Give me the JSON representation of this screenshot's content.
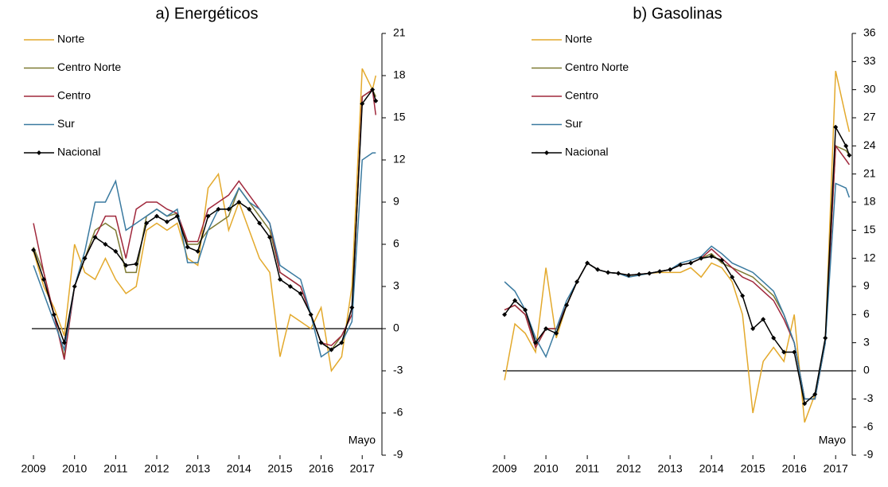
{
  "chart_data": [
    {
      "type": "line",
      "title": "a) Energéticos",
      "annotation": "Mayo",
      "x": [
        2009,
        2009.25,
        2009.5,
        2009.75,
        2010,
        2010.25,
        2010.5,
        2010.75,
        2011,
        2011.25,
        2011.5,
        2011.75,
        2012,
        2012.25,
        2012.5,
        2012.75,
        2013,
        2013.25,
        2013.5,
        2013.75,
        2014,
        2014.25,
        2014.5,
        2014.75,
        2015,
        2015.25,
        2015.5,
        2015.75,
        2016,
        2016.25,
        2016.5,
        2016.75,
        2017,
        2017.25,
        2017.33
      ],
      "xlim": [
        2008.96,
        2017.48
      ],
      "xticks": [
        2009,
        2010,
        2011,
        2012,
        2013,
        2014,
        2015,
        2016,
        2017
      ],
      "ylim": [
        -9,
        21
      ],
      "yticks": [
        -9,
        -6,
        -3,
        0,
        3,
        6,
        9,
        12,
        15,
        18,
        21
      ],
      "series": [
        {
          "name": "Norte",
          "color": "#e3a92c",
          "values": [
            5.5,
            3.0,
            1.5,
            -0.5,
            6.0,
            4.0,
            3.5,
            5.0,
            3.5,
            2.5,
            3.0,
            7.0,
            7.5,
            7.0,
            7.5,
            5.0,
            4.5,
            10.0,
            11.0,
            7.0,
            9.0,
            7.0,
            5.0,
            4.0,
            -2.0,
            1.0,
            0.5,
            0.0,
            1.5,
            -3.0,
            -2.0,
            3.0,
            18.5,
            17.0,
            18.0
          ]
        },
        {
          "name": "Centro Norte",
          "color": "#7d7a32",
          "values": [
            5.8,
            4.0,
            1.0,
            -2.0,
            3.0,
            5.0,
            7.0,
            7.5,
            7.0,
            4.0,
            4.0,
            8.0,
            8.5,
            8.0,
            8.2,
            6.0,
            6.0,
            7.0,
            7.5,
            8.0,
            10.0,
            9.0,
            8.0,
            7.0,
            4.0,
            3.5,
            3.0,
            1.0,
            -1.0,
            -1.5,
            -0.5,
            1.0,
            16.5,
            17.0,
            16.5
          ]
        },
        {
          "name": "Centro",
          "color": "#a0283c",
          "values": [
            7.5,
            4.0,
            1.0,
            -2.2,
            3.0,
            5.0,
            6.5,
            8.0,
            8.0,
            5.0,
            8.5,
            9.0,
            9.0,
            8.5,
            8.2,
            6.2,
            6.2,
            8.5,
            9.0,
            9.5,
            10.5,
            9.5,
            8.5,
            7.5,
            4.0,
            3.5,
            3.0,
            1.0,
            -1.0,
            -1.2,
            -0.5,
            1.0,
            16.5,
            17.0,
            15.2
          ]
        },
        {
          "name": "Sur",
          "color": "#3a7aa0",
          "values": [
            4.5,
            2.5,
            0.5,
            -1.5,
            3.0,
            5.5,
            9.0,
            9.0,
            10.5,
            7.0,
            7.5,
            8.0,
            8.5,
            8.0,
            8.5,
            4.7,
            4.7,
            7.0,
            8.5,
            8.5,
            10.0,
            9.0,
            8.5,
            7.5,
            4.5,
            4.0,
            3.5,
            1.0,
            -2.0,
            -1.5,
            -1.0,
            0.5,
            12.0,
            12.5,
            12.5
          ]
        },
        {
          "name": "Nacional",
          "color": "#000000",
          "values": [
            5.6,
            3.5,
            1.0,
            -1.0,
            3.0,
            5.0,
            6.5,
            6.0,
            5.5,
            4.5,
            4.6,
            7.5,
            8.0,
            7.6,
            8.0,
            5.8,
            5.5,
            8.0,
            8.5,
            8.5,
            9.0,
            8.5,
            7.5,
            6.5,
            3.5,
            3.0,
            2.5,
            1.0,
            -1.0,
            -1.5,
            -1.0,
            1.5,
            16.0,
            17.0,
            16.2
          ]
        }
      ]
    },
    {
      "type": "line",
      "title": "b) Gasolinas",
      "annotation": "Mayo",
      "x": [
        2009,
        2009.25,
        2009.5,
        2009.75,
        2010,
        2010.25,
        2010.5,
        2010.75,
        2011,
        2011.25,
        2011.5,
        2011.75,
        2012,
        2012.25,
        2012.5,
        2012.75,
        2013,
        2013.25,
        2013.5,
        2013.75,
        2014,
        2014.25,
        2014.5,
        2014.75,
        2015,
        2015.25,
        2015.5,
        2015.75,
        2016,
        2016.25,
        2016.5,
        2016.75,
        2017,
        2017.25,
        2017.33
      ],
      "xlim": [
        2008.96,
        2017.4
      ],
      "xticks": [
        2009,
        2010,
        2011,
        2012,
        2013,
        2014,
        2015,
        2016,
        2017
      ],
      "ylim": [
        -9,
        36
      ],
      "yticks": [
        -9,
        -6,
        -3,
        0,
        3,
        6,
        9,
        12,
        15,
        18,
        21,
        24,
        27,
        30,
        33,
        36
      ],
      "series": [
        {
          "name": "Norte",
          "color": "#e3a92c",
          "values": [
            -1.0,
            5.0,
            4.0,
            2.0,
            11.0,
            3.5,
            7.0,
            9.5,
            11.5,
            10.8,
            10.5,
            10.4,
            10.2,
            10.2,
            10.4,
            10.5,
            10.5,
            10.5,
            11.0,
            10.0,
            11.5,
            11.0,
            9.5,
            6.0,
            -4.5,
            1.0,
            2.5,
            1.0,
            6.0,
            -5.5,
            -2.5,
            3.0,
            32.0,
            27.0,
            25.5
          ]
        },
        {
          "name": "Centro Norte",
          "color": "#7d7a32",
          "values": [
            6.5,
            7.0,
            6.0,
            2.5,
            4.5,
            4.5,
            7.0,
            9.5,
            11.5,
            10.8,
            10.5,
            10.4,
            10.2,
            10.3,
            10.4,
            10.6,
            10.8,
            11.3,
            11.5,
            12.0,
            12.5,
            11.5,
            11.0,
            10.5,
            10.0,
            9.0,
            8.0,
            6.0,
            3.0,
            -3.0,
            -3.0,
            3.0,
            24.0,
            23.5,
            23.0
          ]
        },
        {
          "name": "Centro",
          "color": "#a0283c",
          "values": [
            6.5,
            7.0,
            6.0,
            2.5,
            4.5,
            4.5,
            7.0,
            9.5,
            11.5,
            10.8,
            10.5,
            10.4,
            10.2,
            10.3,
            10.4,
            10.6,
            10.8,
            11.3,
            11.5,
            12.0,
            13.0,
            12.0,
            11.0,
            10.0,
            9.5,
            8.5,
            7.5,
            5.5,
            3.0,
            -3.0,
            -3.0,
            3.0,
            24.0,
            22.5,
            22.0
          ]
        },
        {
          "name": "Sur",
          "color": "#3a7aa0",
          "values": [
            9.5,
            8.5,
            6.5,
            3.5,
            1.5,
            4.5,
            7.5,
            9.5,
            11.5,
            10.8,
            10.5,
            10.4,
            10.0,
            10.2,
            10.4,
            10.6,
            10.8,
            11.5,
            11.8,
            12.2,
            13.3,
            12.5,
            11.5,
            11.0,
            10.5,
            9.5,
            8.5,
            6.0,
            3.0,
            -3.0,
            -3.0,
            3.0,
            20.0,
            19.5,
            18.5
          ]
        },
        {
          "name": "Nacional",
          "color": "#000000",
          "values": [
            6.0,
            7.5,
            6.5,
            3.0,
            4.5,
            4.0,
            7.0,
            9.5,
            11.5,
            10.8,
            10.5,
            10.4,
            10.2,
            10.3,
            10.4,
            10.6,
            10.8,
            11.3,
            11.5,
            12.0,
            12.2,
            11.8,
            10.0,
            8.0,
            4.5,
            5.5,
            3.5,
            2.0,
            2.0,
            -3.5,
            -2.5,
            3.5,
            26.0,
            24.0,
            23.0
          ]
        }
      ]
    }
  ]
}
